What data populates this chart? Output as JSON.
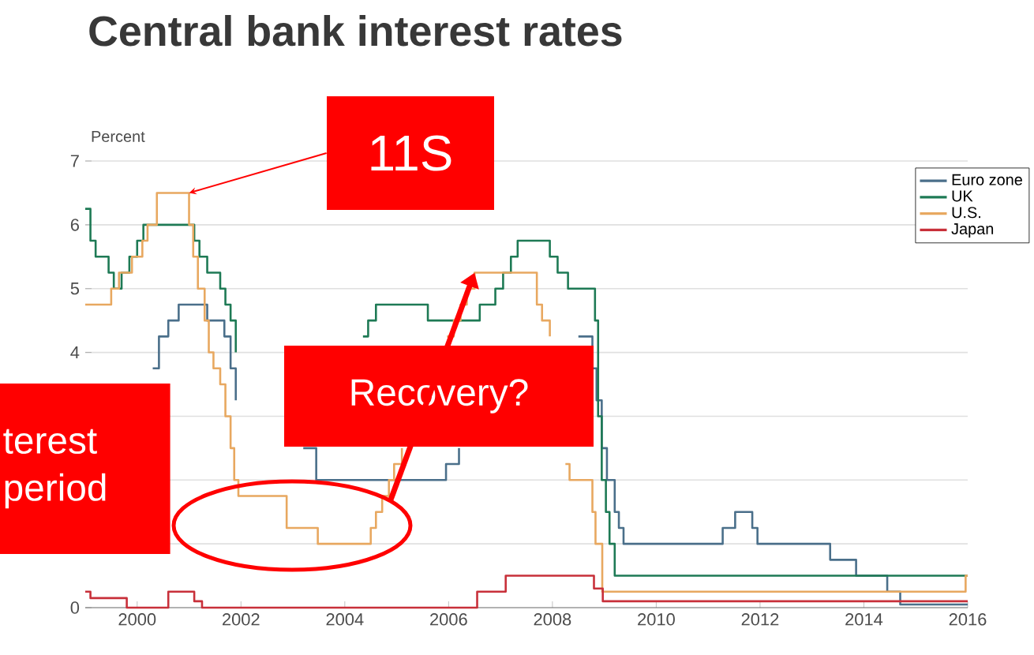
{
  "chart_data": {
    "type": "step",
    "title": "Central bank interest rates",
    "ylabel": "Percent",
    "xlim": [
      1999,
      2016
    ],
    "ylim": [
      0,
      7
    ],
    "xticks": [
      2000,
      2002,
      2004,
      2006,
      2008,
      2010,
      2012,
      2014,
      2016
    ],
    "yticks": [
      0,
      {
        "value": 1,
        "label": null
      },
      {
        "value": 2,
        "label": null
      },
      {
        "value": 3,
        "label": null
      },
      4,
      5,
      6,
      7
    ],
    "grid": "y",
    "legend": "top right",
    "line_style": "solid",
    "marker": "none",
    "series": [
      {
        "name": "Euro zone",
        "color": "#4a6f8a",
        "x": [
          2000.3,
          2000.42,
          2000.6,
          2000.8,
          2001.35,
          2001.68,
          2001.8,
          2001.9,
          2002.92,
          2003.2,
          2003.45,
          2005.95,
          2006.2,
          2006.45,
          2006.6,
          2006.8,
          2006.95,
          2007.2,
          2007.45,
          2008.5,
          2008.77,
          2008.85,
          2008.95,
          2009.05,
          2009.2,
          2009.28,
          2009.37,
          2011.28,
          2011.52,
          2011.85,
          2011.95,
          2013.35,
          2013.85,
          2014.45,
          2014.7,
          2016.0
        ],
        "values": [
          3.75,
          4.25,
          4.5,
          4.75,
          4.5,
          4.25,
          3.75,
          3.25,
          null,
          2.5,
          2.0,
          2.25,
          2.5,
          null,
          null,
          null,
          null,
          null,
          null,
          4.25,
          3.75,
          3.25,
          2.5,
          2.0,
          1.5,
          1.25,
          1.0,
          1.25,
          1.5,
          1.25,
          1.0,
          0.75,
          0.5,
          0.25,
          0.05,
          0.05
        ]
      },
      {
        "name": "UK",
        "color": "#1e7a55",
        "x": [
          1999.0,
          1999.1,
          1999.2,
          1999.45,
          1999.55,
          1999.7,
          1999.85,
          2000.0,
          2000.12,
          2001.1,
          2001.2,
          2001.35,
          2001.6,
          2001.7,
          2001.8,
          2001.9,
          2003.1,
          2003.53,
          2003.85,
          2004.1,
          2004.35,
          2004.45,
          2004.6,
          2005.6,
          2006.6,
          2006.9,
          2007.05,
          2007.2,
          2007.33,
          2007.95,
          2008.1,
          2008.3,
          2008.82,
          2008.88,
          2008.95,
          2009.03,
          2009.1,
          2009.2,
          2016.0
        ],
        "values": [
          6.25,
          5.75,
          5.5,
          5.25,
          5.0,
          5.25,
          5.5,
          5.75,
          6.0,
          5.75,
          5.5,
          5.25,
          5.0,
          4.75,
          4.5,
          4.0,
          null,
          null,
          null,
          null,
          4.25,
          4.5,
          4.75,
          4.5,
          4.75,
          5.0,
          5.25,
          5.5,
          5.75,
          5.5,
          5.25,
          5.0,
          4.5,
          3.0,
          2.0,
          1.5,
          1.0,
          0.5,
          0.5
        ]
      },
      {
        "name": "U.S.",
        "color": "#e8a860",
        "x": [
          1999.0,
          1999.5,
          1999.65,
          1999.9,
          2000.1,
          2000.2,
          2000.38,
          2001.0,
          2001.08,
          2001.17,
          2001.3,
          2001.38,
          2001.47,
          2001.6,
          2001.7,
          2001.8,
          2001.87,
          2001.95,
          2002.88,
          2003.48,
          2004.5,
          2004.6,
          2004.72,
          2004.85,
          2004.95,
          2005.1,
          2005.22,
          2005.35,
          2005.47,
          2005.6,
          2005.72,
          2005.85,
          2005.97,
          2006.1,
          2006.23,
          2006.35,
          2006.5,
          2007.7,
          2007.8,
          2007.95,
          2008.05,
          2008.1,
          2008.25,
          2008.33,
          2008.77,
          2008.83,
          2008.96,
          2015.96,
          2016.0
        ],
        "values": [
          4.75,
          5.0,
          5.25,
          5.5,
          5.75,
          6.0,
          6.5,
          6.0,
          5.5,
          5.0,
          4.5,
          4.0,
          3.75,
          3.5,
          3.0,
          2.5,
          2.0,
          1.75,
          1.25,
          1.0,
          1.25,
          1.5,
          1.75,
          2.0,
          2.25,
          2.5,
          null,
          null,
          null,
          null,
          null,
          null,
          4.25,
          4.5,
          4.75,
          5.0,
          5.25,
          4.75,
          4.5,
          4.25,
          null,
          null,
          2.25,
          2.0,
          1.5,
          1.0,
          0.25,
          0.5,
          0.5
        ]
      },
      {
        "name": "Japan",
        "color": "#c8303a",
        "x": [
          1999.0,
          1999.1,
          1999.8,
          2000.6,
          2001.1,
          2001.25,
          2006.55,
          2007.1,
          2008.8,
          2008.97,
          2016.0
        ],
        "values": [
          0.25,
          0.15,
          0.0,
          0.25,
          0.1,
          0.0,
          0.25,
          0.5,
          0.3,
          0.1,
          0.1
        ]
      }
    ],
    "annotations": [
      {
        "text": "11S",
        "x": 2001.0,
        "y": 6.5
      },
      {
        "text": "Recovery?",
        "x": 2006.5,
        "y": 5.25
      },
      "terest period"
    ]
  }
}
